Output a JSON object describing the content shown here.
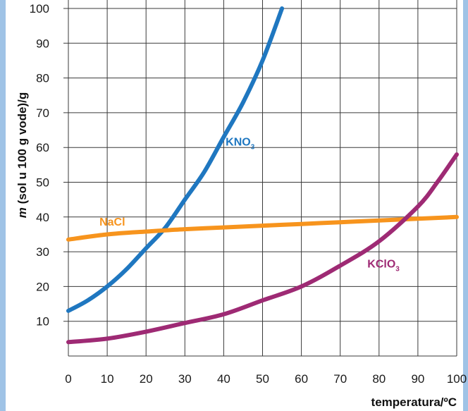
{
  "chart_data": {
    "type": "line",
    "title": "",
    "xlabel": "temperatura/ºC",
    "ylabel": {
      "italic": "m",
      "rest": " (sol u 100 g vode)/g"
    },
    "xlim": [
      0,
      100
    ],
    "ylim": [
      0,
      100
    ],
    "x_ticks": [
      0,
      10,
      20,
      30,
      40,
      50,
      60,
      70,
      80,
      90,
      100
    ],
    "y_ticks": [
      10,
      20,
      30,
      40,
      50,
      60,
      70,
      80,
      90,
      100
    ],
    "grid": true,
    "legend": "inline labels on curves",
    "series": [
      {
        "name": "KNO3",
        "label_main": "KNO",
        "label_sub": "3",
        "color": "#1f77c0",
        "x": [
          0,
          5,
          10,
          15,
          20,
          25,
          30,
          35,
          40,
          45,
          50,
          55
        ],
        "y": [
          13,
          16,
          20,
          25,
          31,
          37,
          45,
          53,
          63,
          73,
          85,
          100
        ]
      },
      {
        "name": "NaCl",
        "label_main": "NaCl",
        "label_sub": "",
        "color": "#f7941d",
        "x": [
          0,
          10,
          20,
          30,
          40,
          50,
          60,
          70,
          80,
          90,
          100
        ],
        "y": [
          33.5,
          35,
          35.8,
          36.5,
          37,
          37.5,
          38,
          38.5,
          39,
          39.5,
          40
        ]
      },
      {
        "name": "KClO3",
        "label_main": "KClO",
        "label_sub": "3",
        "color": "#9e2a74",
        "x": [
          0,
          10,
          20,
          30,
          40,
          50,
          60,
          70,
          80,
          90,
          95,
          100
        ],
        "y": [
          4,
          5,
          7,
          9.5,
          12,
          16,
          20,
          26,
          33,
          43,
          50,
          58
        ]
      }
    ]
  }
}
